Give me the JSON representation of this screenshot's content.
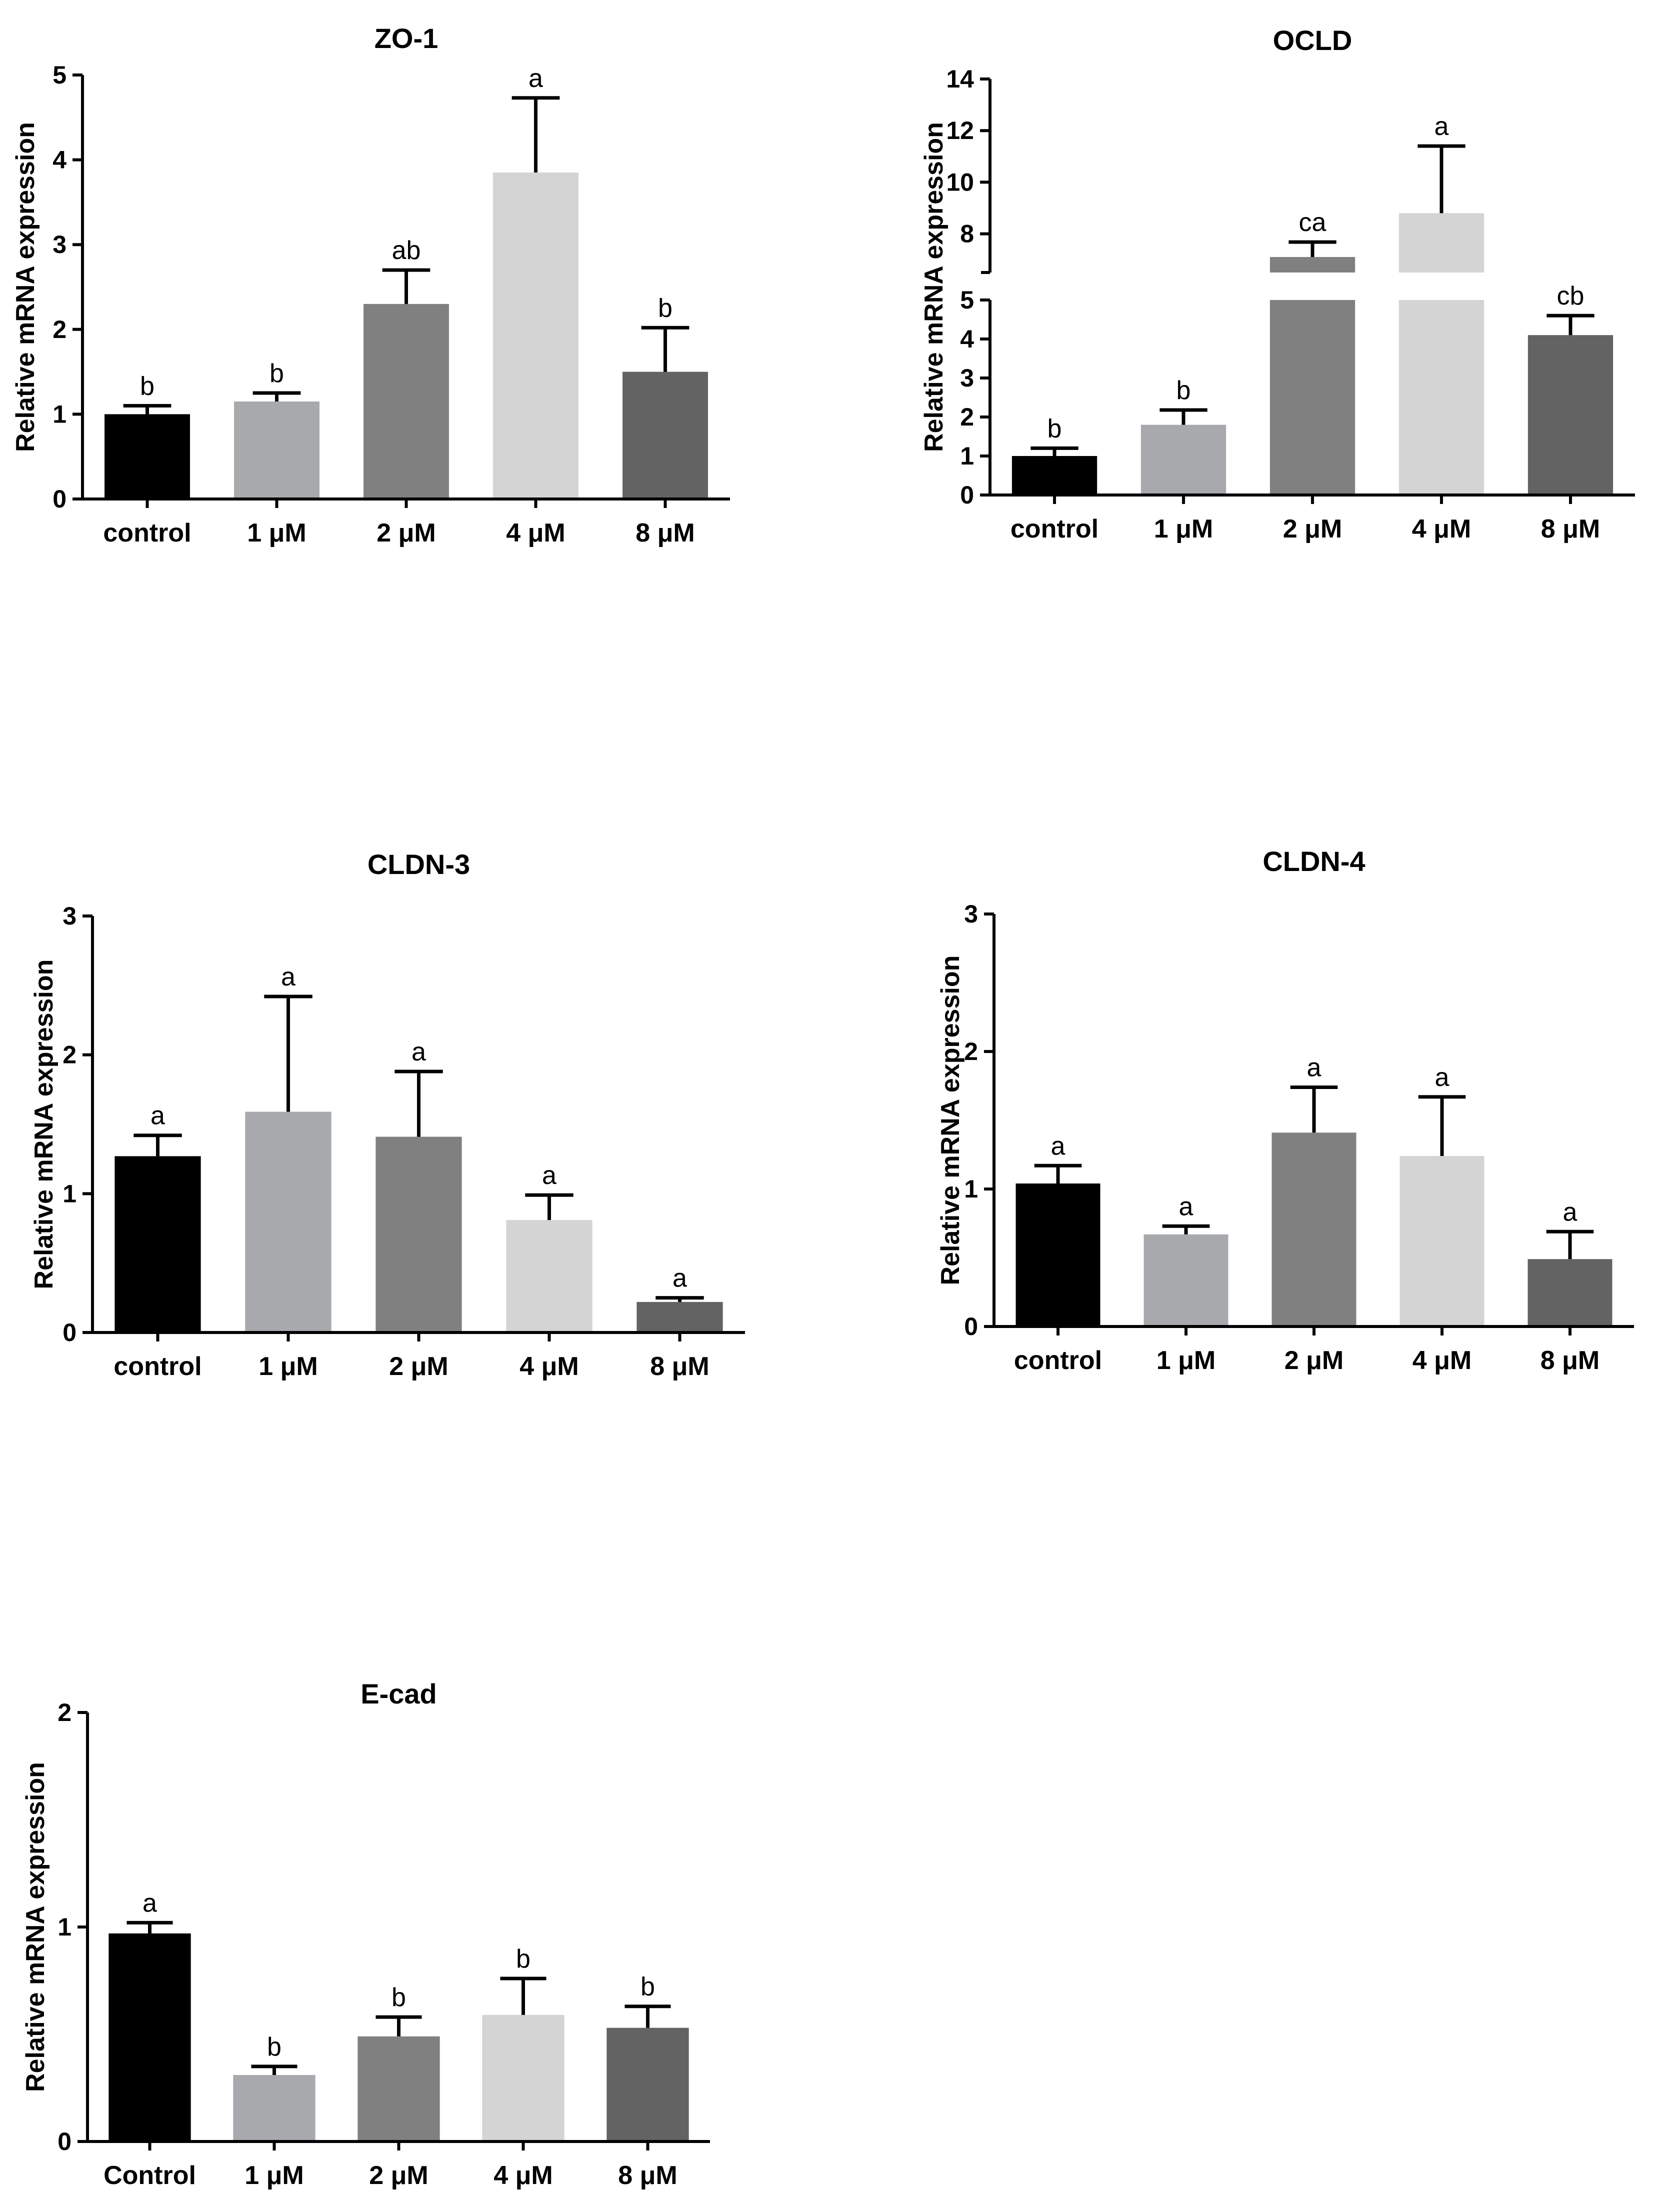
{
  "figure": {
    "ylabel": "Relative mRNA expression"
  },
  "chart_data": [
    {
      "type": "bar",
      "title": "ZO-1",
      "ylabel": "Relative mRNA expression",
      "categories": [
        "control",
        "1 μM",
        "2 μM",
        "4 μM",
        "8 μM"
      ],
      "values": [
        1.0,
        1.15,
        2.3,
        3.85,
        1.5
      ],
      "errors": [
        0.1,
        0.1,
        0.4,
        0.88,
        0.52
      ],
      "letters": [
        "b",
        "b",
        "ab",
        "a",
        "b"
      ],
      "colors": [
        "#000000",
        "#a7a9ac",
        "#808080",
        "#d4d4d4",
        "#636363"
      ],
      "ylim": [
        0,
        5
      ],
      "yticks": [
        0,
        1,
        2,
        3,
        4,
        5
      ]
    },
    {
      "type": "bar",
      "title": "OCLD",
      "ylabel": "Relative mRNA expression",
      "categories": [
        "control",
        "1 μM",
        "2 μM",
        "4 μM",
        "8 μM"
      ],
      "values": [
        1.0,
        1.8,
        7.1,
        8.8,
        4.1
      ],
      "errors": [
        0.2,
        0.38,
        0.58,
        2.6,
        0.5
      ],
      "letters": [
        "b",
        "b",
        "ca",
        "a",
        "cb"
      ],
      "colors": [
        "#000000",
        "#a7a9ac",
        "#808080",
        "#d4d4d4",
        "#636363"
      ],
      "broken_axis": {
        "lower": [
          0,
          5
        ],
        "upper": [
          6.5,
          14
        ]
      },
      "yticks": [
        0,
        1,
        2,
        3,
        4,
        5,
        8,
        10,
        12,
        14
      ]
    },
    {
      "type": "bar",
      "title": "CLDN-3",
      "ylabel": "Relative mRNA expression",
      "categories": [
        "control",
        "1 μM",
        "2 μM",
        "4 μM",
        "8 μM"
      ],
      "values": [
        1.27,
        1.59,
        1.41,
        0.81,
        0.22
      ],
      "errors": [
        0.15,
        0.83,
        0.47,
        0.18,
        0.03
      ],
      "letters": [
        "a",
        "a",
        "a",
        "a",
        "a"
      ],
      "colors": [
        "#000000",
        "#a7a9ac",
        "#808080",
        "#d4d4d4",
        "#636363"
      ],
      "ylim": [
        0,
        3
      ],
      "yticks": [
        0,
        1,
        2,
        3
      ]
    },
    {
      "type": "bar",
      "title": "CLDN-4",
      "ylabel": "Relative mRNA expression",
      "categories": [
        "control",
        "1 μM",
        "2 μM",
        "4 μM",
        "8 μM"
      ],
      "values": [
        1.04,
        0.67,
        1.41,
        1.24,
        0.49
      ],
      "errors": [
        0.13,
        0.06,
        0.33,
        0.43,
        0.2
      ],
      "letters": [
        "a",
        "a",
        "a",
        "a",
        "a"
      ],
      "colors": [
        "#000000",
        "#a7a9ac",
        "#808080",
        "#d4d4d4",
        "#636363"
      ],
      "ylim": [
        0,
        3
      ],
      "yticks": [
        0,
        1,
        2,
        3
      ]
    },
    {
      "type": "bar",
      "title": "E-cad",
      "ylabel": "Relative mRNA expression",
      "categories": [
        "Control",
        "1 μM",
        "2 μM",
        "4 μM",
        "8 μM"
      ],
      "values": [
        0.97,
        0.31,
        0.49,
        0.59,
        0.53
      ],
      "errors": [
        0.05,
        0.04,
        0.09,
        0.17,
        0.1
      ],
      "letters": [
        "a",
        "b",
        "b",
        "b",
        "b"
      ],
      "colors": [
        "#000000",
        "#a7a9ac",
        "#808080",
        "#d4d4d4",
        "#636363"
      ],
      "ylim": [
        0,
        2
      ],
      "yticks": [
        0,
        1,
        2
      ]
    }
  ]
}
